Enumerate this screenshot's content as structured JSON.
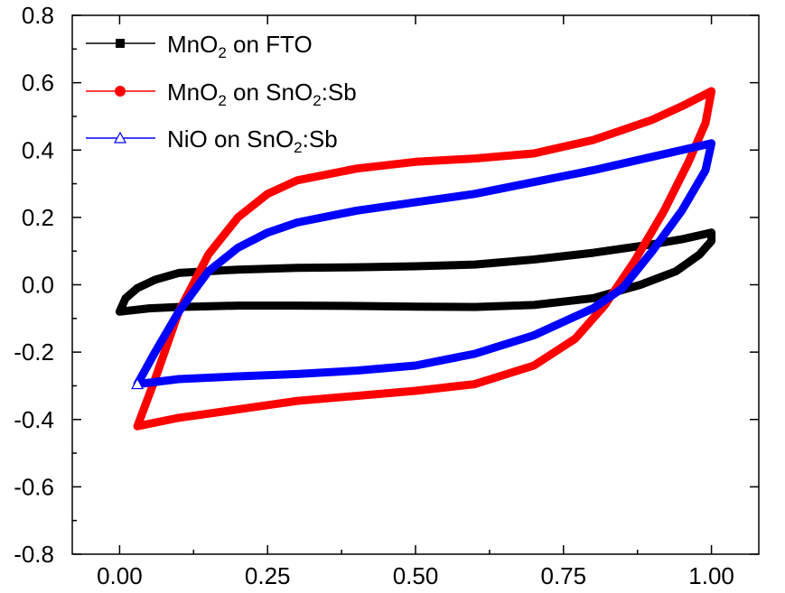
{
  "chart_data": {
    "type": "line",
    "title": "",
    "xlabel": "",
    "ylabel": "",
    "xlim": [
      -0.08,
      1.08
    ],
    "ylim": [
      -0.8,
      0.8
    ],
    "xticks": [
      0.0,
      0.25,
      0.5,
      0.75,
      1.0
    ],
    "xtick_labels": [
      "0.00",
      "0.25",
      "0.50",
      "0.75",
      "1.00"
    ],
    "yticks": [
      -0.8,
      -0.6,
      -0.4,
      -0.2,
      0.0,
      0.2,
      0.4,
      0.6,
      0.8
    ],
    "ytick_labels": [
      "-0.8",
      "-0.6",
      "-0.4",
      "-0.2",
      "0.0",
      "0.2",
      "0.4",
      "0.6",
      "0.8"
    ],
    "grid": false,
    "legend_position": "top-left",
    "series": [
      {
        "name": "MnO2 on FTO",
        "legend_main": "MnO",
        "legend_sub": "2",
        "legend_rest": " on FTO",
        "color": "#000000",
        "marker": "square",
        "points": [
          [
            0.0,
            -0.08
          ],
          [
            0.01,
            -0.04
          ],
          [
            0.03,
            -0.01
          ],
          [
            0.06,
            0.015
          ],
          [
            0.1,
            0.035
          ],
          [
            0.2,
            0.045
          ],
          [
            0.3,
            0.05
          ],
          [
            0.4,
            0.052
          ],
          [
            0.5,
            0.055
          ],
          [
            0.6,
            0.06
          ],
          [
            0.7,
            0.075
          ],
          [
            0.8,
            0.095
          ],
          [
            0.9,
            0.12
          ],
          [
            0.95,
            0.135
          ],
          [
            1.0,
            0.155
          ],
          [
            1.0,
            0.13
          ],
          [
            0.98,
            0.09
          ],
          [
            0.94,
            0.04
          ],
          [
            0.88,
            0.0
          ],
          [
            0.8,
            -0.04
          ],
          [
            0.7,
            -0.06
          ],
          [
            0.6,
            -0.066
          ],
          [
            0.5,
            -0.065
          ],
          [
            0.4,
            -0.063
          ],
          [
            0.3,
            -0.062
          ],
          [
            0.2,
            -0.062
          ],
          [
            0.1,
            -0.066
          ],
          [
            0.05,
            -0.07
          ],
          [
            0.0,
            -0.08
          ]
        ]
      },
      {
        "name": "MnO2 on SnO2:Sb",
        "legend_main": "MnO",
        "legend_sub": "2",
        "legend_rest": " on SnO",
        "legend_sub2": "2",
        "legend_rest2": ":Sb",
        "color": "#ff0000",
        "marker": "circle",
        "points": [
          [
            0.03,
            -0.42
          ],
          [
            0.06,
            -0.28
          ],
          [
            0.1,
            -0.08
          ],
          [
            0.15,
            0.09
          ],
          [
            0.2,
            0.2
          ],
          [
            0.25,
            0.27
          ],
          [
            0.3,
            0.31
          ],
          [
            0.4,
            0.345
          ],
          [
            0.5,
            0.365
          ],
          [
            0.6,
            0.375
          ],
          [
            0.7,
            0.39
          ],
          [
            0.8,
            0.43
          ],
          [
            0.9,
            0.49
          ],
          [
            0.95,
            0.53
          ],
          [
            1.0,
            0.575
          ],
          [
            0.99,
            0.48
          ],
          [
            0.96,
            0.36
          ],
          [
            0.92,
            0.22
          ],
          [
            0.87,
            0.07
          ],
          [
            0.82,
            -0.06
          ],
          [
            0.77,
            -0.16
          ],
          [
            0.7,
            -0.24
          ],
          [
            0.6,
            -0.295
          ],
          [
            0.5,
            -0.315
          ],
          [
            0.4,
            -0.33
          ],
          [
            0.3,
            -0.345
          ],
          [
            0.2,
            -0.37
          ],
          [
            0.1,
            -0.395
          ],
          [
            0.03,
            -0.42
          ]
        ]
      },
      {
        "name": "NiO on SnO2:Sb",
        "legend_main": "NiO on SnO",
        "legend_sub": "2",
        "legend_rest": ":Sb",
        "color": "#0000ff",
        "marker": "triangle",
        "points": [
          [
            0.03,
            -0.295
          ],
          [
            0.06,
            -0.2
          ],
          [
            0.1,
            -0.08
          ],
          [
            0.15,
            0.04
          ],
          [
            0.2,
            0.11
          ],
          [
            0.25,
            0.155
          ],
          [
            0.3,
            0.185
          ],
          [
            0.4,
            0.22
          ],
          [
            0.5,
            0.245
          ],
          [
            0.6,
            0.27
          ],
          [
            0.7,
            0.305
          ],
          [
            0.8,
            0.34
          ],
          [
            0.9,
            0.38
          ],
          [
            0.95,
            0.4
          ],
          [
            1.0,
            0.42
          ],
          [
            0.99,
            0.34
          ],
          [
            0.95,
            0.22
          ],
          [
            0.9,
            0.1
          ],
          [
            0.85,
            -0.01
          ],
          [
            0.8,
            -0.07
          ],
          [
            0.7,
            -0.15
          ],
          [
            0.6,
            -0.205
          ],
          [
            0.5,
            -0.24
          ],
          [
            0.4,
            -0.255
          ],
          [
            0.3,
            -0.265
          ],
          [
            0.2,
            -0.272
          ],
          [
            0.1,
            -0.28
          ],
          [
            0.03,
            -0.295
          ]
        ]
      }
    ]
  }
}
